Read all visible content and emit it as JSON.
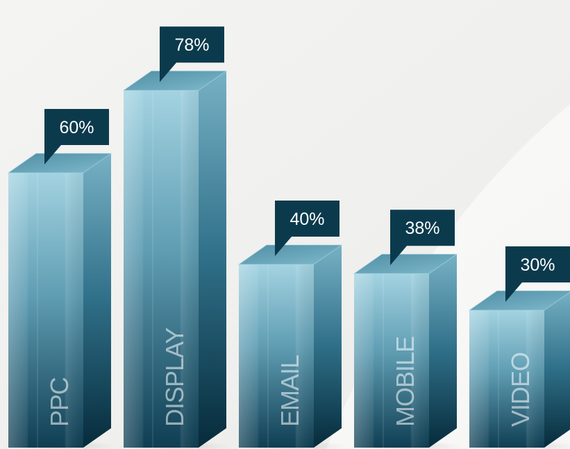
{
  "chart_data": {
    "type": "bar",
    "categories": [
      "PPC",
      "DISPLAY",
      "EMAIL",
      "MOBILE",
      "VIDEO"
    ],
    "values": [
      60,
      78,
      40,
      38,
      30
    ],
    "data_labels": [
      "60%",
      "78%",
      "40%",
      "38%",
      "30%"
    ],
    "title": "",
    "xlabel": "",
    "ylabel": "",
    "ylim": [
      0,
      100
    ],
    "grid": false,
    "legend": "none",
    "style": "3d-glass-columns",
    "colors": {
      "bar_front_light": "#9fd1e0",
      "bar_front_dark": "#0f3f55",
      "bar_side_light": "#6da8bc",
      "bar_side_dark": "#062b3b",
      "bar_top": "#5f9fb4",
      "callout": "#0c3a4d",
      "background": "#f2f2f0"
    }
  }
}
